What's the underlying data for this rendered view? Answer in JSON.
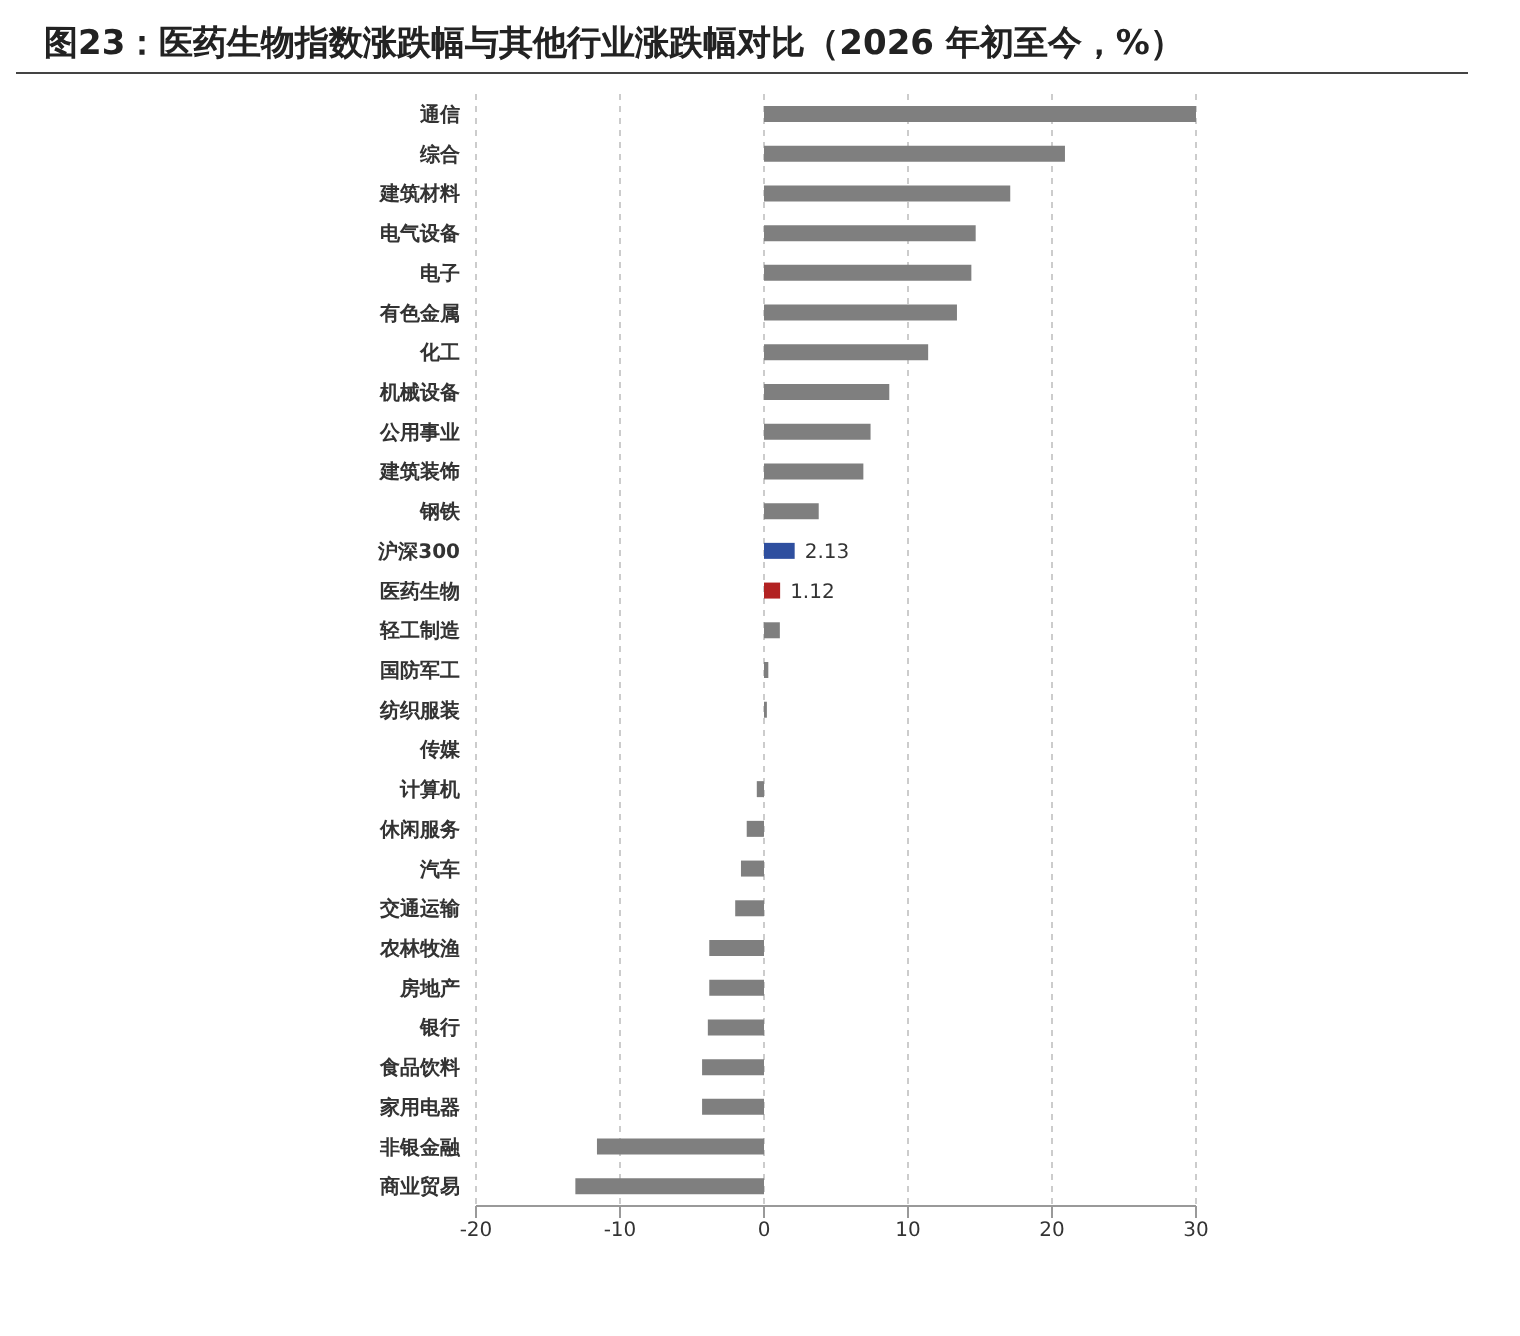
{
  "chart_data": {
    "type": "bar",
    "orientation": "horizontal",
    "title": "图23：医药生物指数涨跌幅与其他行业涨跌幅对比（2026 年初至今，%）",
    "categories": [
      "通信",
      "综合",
      "建筑材料",
      "电气设备",
      "电子",
      "有色金属",
      "化工",
      "机械设备",
      "公用事业",
      "建筑装饰",
      "钢铁",
      "沪深300",
      "医药生物",
      "轻工制造",
      "国防军工",
      "纺织服装",
      "传媒",
      "计算机",
      "休闲服务",
      "汽车",
      "交通运输",
      "农林牧渔",
      "房地产",
      "银行",
      "食品饮料",
      "家用电器",
      "非银金融",
      "商业贸易"
    ],
    "values": [
      30,
      20.9,
      17.1,
      14.7,
      14.4,
      13.4,
      11.4,
      8.7,
      7.4,
      6.9,
      3.8,
      2.13,
      1.12,
      1.1,
      0.3,
      0.2,
      0,
      -0.5,
      -1.2,
      -1.6,
      -2,
      -3.8,
      -3.8,
      -3.9,
      -4.3,
      -4.3,
      -11.6,
      -13.1
    ],
    "colors": [
      "#7f7f7f",
      "#7f7f7f",
      "#7f7f7f",
      "#7f7f7f",
      "#7f7f7f",
      "#7f7f7f",
      "#7f7f7f",
      "#7f7f7f",
      "#7f7f7f",
      "#7f7f7f",
      "#7f7f7f",
      "#2f4f9f",
      "#b22222",
      "#7f7f7f",
      "#7f7f7f",
      "#7f7f7f",
      "#7f7f7f",
      "#7f7f7f",
      "#7f7f7f",
      "#7f7f7f",
      "#7f7f7f",
      "#7f7f7f",
      "#7f7f7f",
      "#7f7f7f",
      "#7f7f7f",
      "#7f7f7f",
      "#7f7f7f",
      "#7f7f7f"
    ],
    "value_labels": [
      null,
      null,
      null,
      null,
      null,
      null,
      null,
      null,
      null,
      null,
      null,
      "2.13",
      "1.12",
      null,
      null,
      null,
      null,
      null,
      null,
      null,
      null,
      null,
      null,
      null,
      null,
      null,
      null,
      null
    ],
    "xlim": [
      -20,
      30
    ],
    "xticks": [
      -20,
      -10,
      0,
      10,
      20,
      30
    ],
    "grid": "x"
  }
}
